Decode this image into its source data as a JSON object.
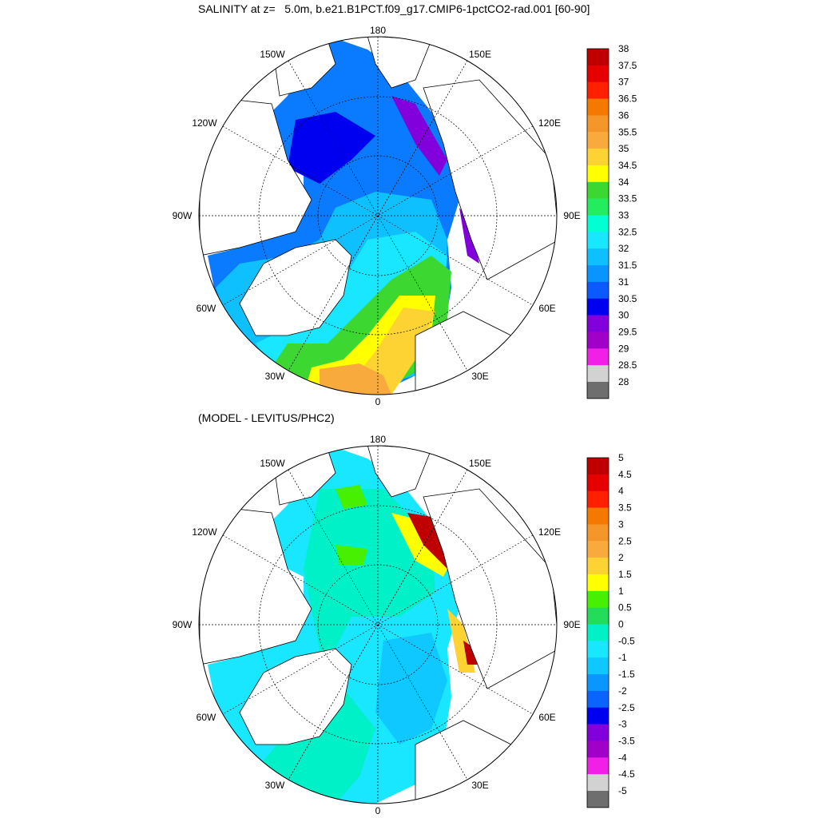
{
  "panels": [
    {
      "title": "SALINITY at z=   5.0m, b.e21.B1PCT.f09_g17.CMIP6-1pctCO2-rad.001 [60-90]",
      "lon_labels": {
        "180": "180",
        "150E": "150E",
        "120E": "120E",
        "90E": "90E",
        "60E": "60E",
        "30E": "30E",
        "0": "0",
        "30W": "30W",
        "60W": "60W",
        "90W": "90W",
        "120W": "120W",
        "150W": "150W"
      },
      "colorbar": {
        "labels": [
          "38",
          "37.5",
          "37",
          "36.5",
          "36",
          "35.5",
          "35",
          "34.5",
          "34",
          "33.5",
          "33",
          "32.5",
          "32",
          "31.5",
          "31",
          "30.5",
          "30",
          "29.5",
          "29",
          "28.5",
          "28"
        ],
        "colors": [
          "#c00000",
          "#e60000",
          "#ff2000",
          "#f57800",
          "#f5962a",
          "#f8ab3c",
          "#fdd233",
          "#ffff00",
          "#3cd730",
          "#23ed5f",
          "#00ffd2",
          "#19e6ff",
          "#0fc0ff",
          "#0a94ff",
          "#0a5aff",
          "#0000f0",
          "#8200dc",
          "#a000c8",
          "#f020e6",
          "#d2d2d2",
          "#6e6e6e"
        ]
      }
    },
    {
      "title": "(MODEL - LEVITUS/PHC2)",
      "lon_labels": {
        "180": "180",
        "150E": "150E",
        "120E": "120E",
        "90E": "90E",
        "60E": "60E",
        "30E": "30E",
        "0": "0",
        "30W": "30W",
        "60W": "60W",
        "90W": "90W",
        "120W": "120W",
        "150W": "150W"
      },
      "colorbar": {
        "labels": [
          "5",
          "4.5",
          "4",
          "3.5",
          "3",
          "2.5",
          "2",
          "1.5",
          "1",
          "0.5",
          "0",
          "-0.5",
          "-1",
          "-1.5",
          "-2",
          "-2.5",
          "-3",
          "-3.5",
          "-4",
          "-4.5",
          "-5"
        ],
        "colors": [
          "#c00000",
          "#e60000",
          "#ff2000",
          "#f57800",
          "#f5962a",
          "#f8ab3c",
          "#fdd233",
          "#ffff00",
          "#46f000",
          "#23dc5a",
          "#00f0c8",
          "#19e6ff",
          "#0fc8ff",
          "#0a96ff",
          "#0a64ff",
          "#0000f0",
          "#8200dc",
          "#a000c8",
          "#f020e6",
          "#d2d2d2",
          "#6e6e6e"
        ]
      }
    }
  ],
  "fill_colors": {
    "land": "#ffffff",
    "top_main": "#0a7aff",
    "top_mid": "#0fc0ff",
    "top_fresh": "#0000f0",
    "top_atl": "#fdd233",
    "top_green": "#3cd730",
    "bot_main": "#19e6ff",
    "bot_mid": "#00f0c8",
    "bot_neg": "#0fc8ff",
    "bot_pos": "#46f000",
    "bot_hot": "#c00000"
  }
}
